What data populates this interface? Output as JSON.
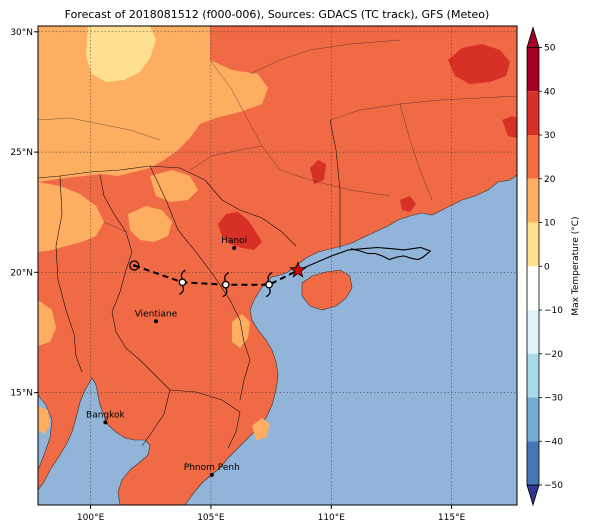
{
  "title": "Forecast of 2018081512 (f000-006), Sources: GDACS (TC track), GFS (Meteo)",
  "map": {
    "lon_range": [
      97.7,
      117.6
    ],
    "lat_range": [
      10.3,
      30.3
    ],
    "lon_ticks": [
      100,
      105,
      110,
      115
    ],
    "lat_ticks": [
      15,
      20,
      25,
      30
    ],
    "lon_tick_labels": [
      "100°E",
      "105°E",
      "110°E",
      "115°E"
    ],
    "lat_tick_labels": [
      "15°N",
      "20°N",
      "25°N",
      "30°N"
    ],
    "grid": true,
    "ocean_color": "#91b4d8",
    "land_base_color": "#ef6a45"
  },
  "cities": [
    {
      "name": "Hanoi",
      "lon": 105.85,
      "lat": 21.03
    },
    {
      "name": "Vientiane",
      "lon": 102.6,
      "lat": 17.97
    },
    {
      "name": "Bangkok",
      "lon": 100.5,
      "lat": 13.75
    },
    {
      "name": "Phnom Penh",
      "lon": 104.92,
      "lat": 11.56
    }
  ],
  "forecast_track": [
    {
      "lon": 101.7,
      "lat": 20.3,
      "symbol": "circle"
    },
    {
      "lon": 103.7,
      "lat": 19.6,
      "symbol": "cyclone"
    },
    {
      "lon": 105.5,
      "lat": 19.5,
      "symbol": "cyclone"
    },
    {
      "lon": 107.3,
      "lat": 19.5,
      "symbol": "cyclone"
    },
    {
      "lon": 108.5,
      "lat": 20.1,
      "symbol": "star"
    }
  ],
  "past_track": [
    [
      108.5,
      20.1
    ],
    [
      109.2,
      20.4
    ],
    [
      109.9,
      20.7
    ],
    [
      110.6,
      20.95
    ],
    [
      111.2,
      21.0
    ],
    [
      111.8,
      21.05
    ],
    [
      112.4,
      21.0
    ],
    [
      112.9,
      20.95
    ],
    [
      113.6,
      21.05
    ],
    [
      114.0,
      20.9
    ],
    [
      113.7,
      20.65
    ],
    [
      113.5,
      20.55
    ],
    [
      113.2,
      20.6
    ],
    [
      112.9,
      20.7
    ],
    [
      112.6,
      20.65
    ],
    [
      112.3,
      20.55
    ],
    [
      112.0,
      20.7
    ],
    [
      111.7,
      20.8
    ],
    [
      111.4,
      20.8
    ],
    [
      111.1,
      20.9
    ],
    [
      110.7,
      21.0
    ]
  ],
  "colorbar": {
    "label": "Max Temperature (°C)",
    "ticks": [
      50,
      40,
      30,
      20,
      10,
      0,
      -10,
      -20,
      -30,
      -40,
      -50
    ],
    "tick_labels": [
      "50",
      "40",
      "30",
      "20",
      "10",
      "0",
      "−10",
      "−20",
      "−30",
      "−40",
      "−50"
    ],
    "colors_top_to_bottom": [
      "#67001f",
      "#b2182b",
      "#d6604d",
      "#f4a582",
      "#fddbc7",
      "#f7f7f7",
      "#d1e5f0",
      "#92c5de",
      "#4393c3",
      "#2166ac",
      "#053061"
    ],
    "band_colors": [
      {
        "from": 50,
        "to": 40,
        "color": "#a50026"
      },
      {
        "from": 40,
        "to": 30,
        "color": "#d73027"
      },
      {
        "from": 30,
        "to": 20,
        "color": "#f46d43"
      },
      {
        "from": 20,
        "to": 10,
        "color": "#fdae61"
      },
      {
        "from": 10,
        "to": 0,
        "color": "#fee090"
      },
      {
        "from": 0,
        "to": -10,
        "color": "#ffffff"
      },
      {
        "from": -10,
        "to": -20,
        "color": "#e0f3f8"
      },
      {
        "from": -20,
        "to": -30,
        "color": "#abd9e9"
      },
      {
        "from": -30,
        "to": -40,
        "color": "#74add1"
      },
      {
        "from": -40,
        "to": -50,
        "color": "#4575b4"
      }
    ],
    "extend_top_color": "#a50026",
    "extend_bottom_color": "#313695"
  }
}
